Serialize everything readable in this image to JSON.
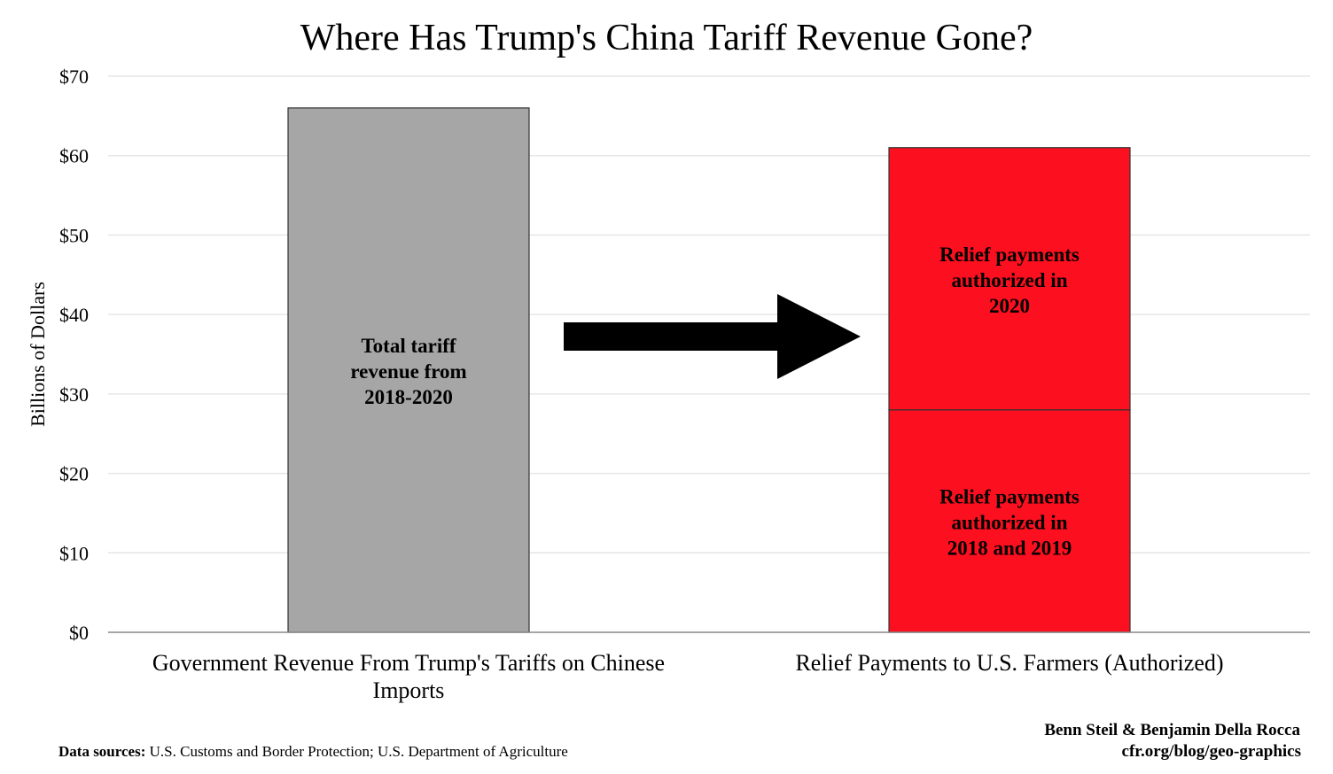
{
  "chart_data": {
    "type": "bar",
    "stacked": true,
    "title": "Where Has Trump's China Tariff Revenue Gone?",
    "ylabel": "Billions of Dollars",
    "xlabel": "",
    "ylim": [
      0,
      70
    ],
    "yticks": [
      "$0",
      "$10",
      "$20",
      "$30",
      "$40",
      "$50",
      "$60",
      "$70"
    ],
    "grid": true,
    "categories": [
      [
        "Government Revenue From Trump's Tariffs on Chinese",
        "Imports"
      ],
      [
        "Relief Payments to U.S. Farmers (Authorized)"
      ]
    ],
    "bars": [
      {
        "category_index": 0,
        "segments": [
          {
            "value": 66,
            "color": "#a6a6a6",
            "label": [
              "Total tariff",
              "revenue from",
              "2018-2020"
            ]
          }
        ]
      },
      {
        "category_index": 1,
        "segments": [
          {
            "value": 28,
            "color": "#fc0f1e",
            "label": [
              "Relief payments",
              "authorized in",
              "2018 and 2019"
            ]
          },
          {
            "value": 33,
            "color": "#fc0f1e",
            "label": [
              "Relief payments",
              "authorized in",
              "2020"
            ]
          }
        ]
      }
    ],
    "annotations": {
      "arrow": "right-arrow"
    }
  },
  "footer": {
    "sources_label": "Data sources:",
    "sources_text": " U.S. Customs and Border Protection; U.S. Department of Agriculture",
    "authors": "Benn Steil & Benjamin Della Rocca",
    "url": "cfr.org/blog/geo-graphics"
  }
}
